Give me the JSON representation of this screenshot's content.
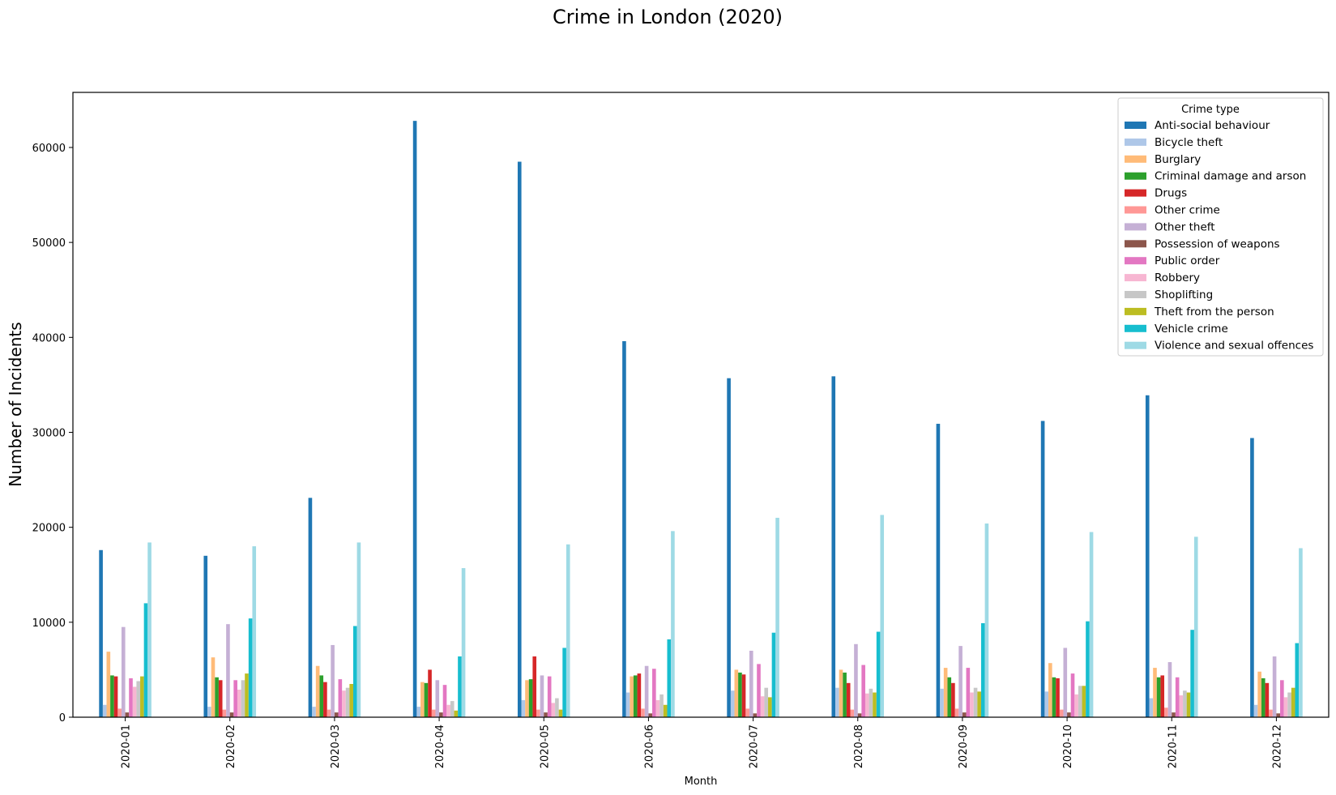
{
  "chart_data": {
    "type": "bar",
    "title": "Crime in London (2020)",
    "xlabel": "Month",
    "ylabel": "Number of Incidents",
    "ylim": [
      0,
      65800
    ],
    "yticks": [
      0,
      10000,
      20000,
      30000,
      40000,
      50000,
      60000
    ],
    "grid": false,
    "legend": {
      "title": "Crime type",
      "placement": "top-right"
    },
    "categories": [
      "2020-01",
      "2020-02",
      "2020-03",
      "2020-04",
      "2020-05",
      "2020-06",
      "2020-07",
      "2020-08",
      "2020-09",
      "2020-10",
      "2020-11",
      "2020-12"
    ],
    "series": [
      {
        "name": "Anti-social behaviour",
        "color": "#1f77b4",
        "values": [
          17600,
          17000,
          23100,
          62800,
          58500,
          39600,
          35700,
          35900,
          30900,
          31200,
          33900,
          29400
        ]
      },
      {
        "name": "Bicycle theft",
        "color": "#aec7e8",
        "values": [
          1300,
          1100,
          1100,
          1100,
          1800,
          2600,
          2800,
          3100,
          3000,
          2700,
          2000,
          1300
        ]
      },
      {
        "name": "Burglary",
        "color": "#ffbb78",
        "values": [
          6900,
          6300,
          5400,
          3700,
          3900,
          4300,
          5000,
          5000,
          5200,
          5700,
          5200,
          4800
        ]
      },
      {
        "name": "Criminal damage and arson",
        "color": "#2ca02c",
        "values": [
          4400,
          4200,
          4400,
          3600,
          4000,
          4400,
          4700,
          4700,
          4200,
          4200,
          4200,
          4100
        ]
      },
      {
        "name": "Drugs",
        "color": "#d62728",
        "values": [
          4300,
          3900,
          3700,
          5000,
          6400,
          4600,
          4500,
          3600,
          3600,
          4100,
          4400,
          3600
        ]
      },
      {
        "name": "Other crime",
        "color": "#ff9896",
        "values": [
          900,
          800,
          800,
          800,
          800,
          900,
          900,
          800,
          900,
          800,
          1000,
          800
        ]
      },
      {
        "name": "Other theft",
        "color": "#c5b0d5",
        "values": [
          9500,
          9800,
          7600,
          3900,
          4400,
          5400,
          7000,
          7700,
          7500,
          7300,
          5800,
          6400
        ]
      },
      {
        "name": "Possession of weapons",
        "color": "#8c564b",
        "values": [
          500,
          500,
          500,
          500,
          500,
          400,
          400,
          400,
          500,
          500,
          500,
          400
        ]
      },
      {
        "name": "Public order",
        "color": "#e377c2",
        "values": [
          4100,
          3900,
          4000,
          3400,
          4300,
          5100,
          5600,
          5500,
          5200,
          4600,
          4200,
          3900
        ]
      },
      {
        "name": "Robbery",
        "color": "#f7b6d2",
        "values": [
          3200,
          2900,
          2800,
          1300,
          1500,
          1800,
          2200,
          2500,
          2600,
          2400,
          2300,
          2100
        ]
      },
      {
        "name": "Shoplifting",
        "color": "#c7c7c7",
        "values": [
          3800,
          3900,
          3100,
          1700,
          2000,
          2400,
          3100,
          3000,
          3100,
          3300,
          2800,
          2600
        ]
      },
      {
        "name": "Theft from the person",
        "color": "#bcbd22",
        "values": [
          4300,
          4600,
          3500,
          700,
          800,
          1300,
          2100,
          2600,
          2700,
          3300,
          2600,
          3100
        ]
      },
      {
        "name": "Vehicle crime",
        "color": "#17becf",
        "values": [
          12000,
          10400,
          9600,
          6400,
          7300,
          8200,
          8900,
          9000,
          9900,
          10100,
          9200,
          7800
        ]
      },
      {
        "name": "Violence and sexual offences",
        "color": "#9edae5",
        "values": [
          18400,
          18000,
          18400,
          15700,
          18200,
          19600,
          21000,
          21300,
          20400,
          19500,
          19000,
          17800
        ]
      }
    ]
  }
}
